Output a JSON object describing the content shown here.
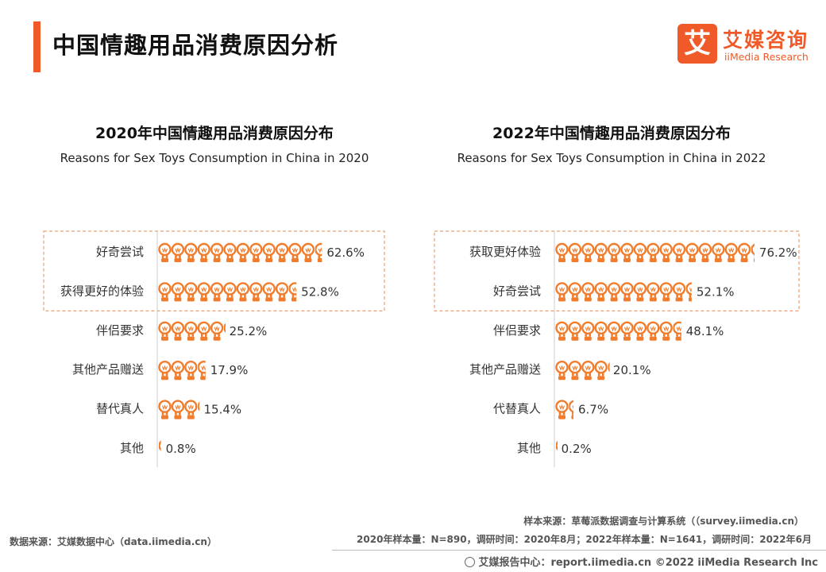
{
  "header": {
    "title": "中国情趣用品消费原因分析",
    "accent_color": "#f05a28"
  },
  "logo": {
    "mark": "艾",
    "cn": "艾媒咨询",
    "en": "iiMedia Research"
  },
  "colors": {
    "bulb": "#f07c2c",
    "dashed_box": "#e8a070",
    "axis": "#cccccc"
  },
  "chart_data": [
    {
      "type": "bar",
      "icon": "lightbulb",
      "title": "2020年中国情趣用品消费原因分布",
      "subtitle": "Reasons for Sex Toys Consumption in China in 2020",
      "categories": [
        "好奇尝试",
        "获得更好的体验",
        "伴侣要求",
        "其他产品赠送",
        "替代真人",
        "其他"
      ],
      "values": [
        62.6,
        52.8,
        25.2,
        17.9,
        15.4,
        0.8
      ],
      "value_labels": [
        "62.6%",
        "52.8%",
        "25.2%",
        "17.9%",
        "15.4%",
        "0.8%"
      ],
      "highlighted": [
        0,
        1
      ],
      "unit": "%"
    },
    {
      "type": "bar",
      "icon": "lightbulb",
      "title": "2022年中国情趣用品消费原因分布",
      "subtitle": "Reasons for Sex Toys Consumption in China in 2022",
      "categories": [
        "获取更好体验",
        "好奇尝试",
        "伴侣要求",
        "其他产品赠送",
        "代替真人",
        "其他"
      ],
      "values": [
        76.2,
        52.1,
        48.1,
        20.1,
        6.7,
        0.2
      ],
      "value_labels": [
        "76.2%",
        "52.1%",
        "48.1%",
        "20.1%",
        "6.7%",
        "0.2%"
      ],
      "highlighted": [
        0,
        1
      ],
      "unit": "%"
    }
  ],
  "footer": {
    "sample_source": "样本来源：草莓派数据调查与计算系统（（survey.iimedia.cn）",
    "sample_info": "2020年样本量：N=890，调研时间：2020年8月；2022年样本量：N=1641，调研时间：2022年6月",
    "data_source": "数据来源：艾媒数据中心（data.iimedia.cn）",
    "report": "艾媒报告中心：report.iimedia.cn   ©2022  iiMedia Research  Inc"
  }
}
